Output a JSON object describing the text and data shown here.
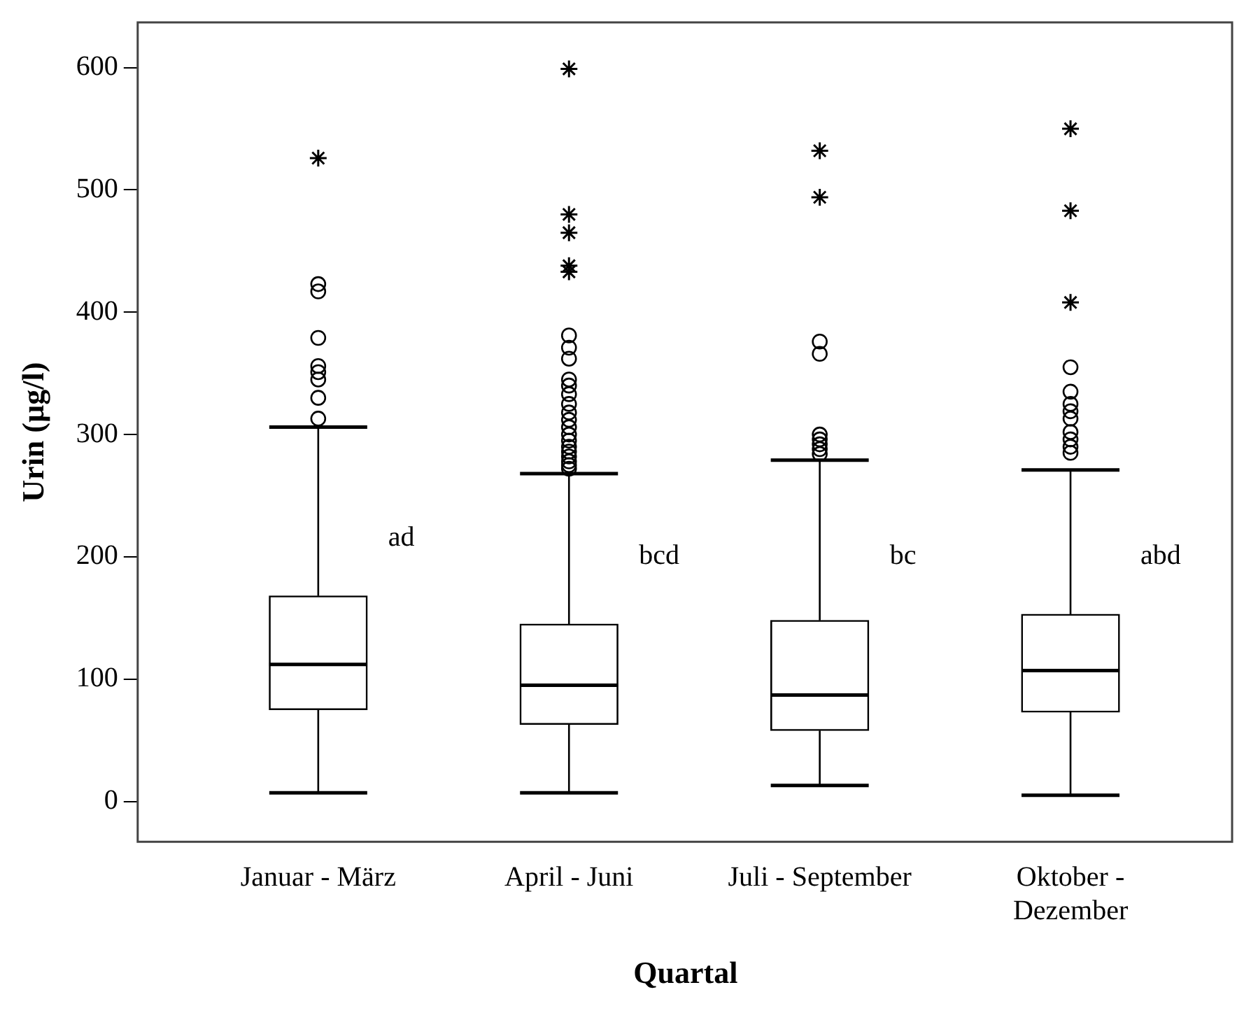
{
  "chart_data": {
    "type": "box",
    "xlabel": "Quartal",
    "ylabel": "Urin (µg/l)",
    "categories": [
      "Januar - März",
      "April - Juni",
      "Juli - September",
      "Oktober - Dezember"
    ],
    "ylim": [
      -33,
      637
    ],
    "yticks": [
      0,
      100,
      200,
      300,
      400,
      500,
      600
    ],
    "grid": false,
    "legend": false,
    "color": "#000000",
    "boxes": [
      {
        "low": 7,
        "q1": 75,
        "median": 112,
        "q3": 168,
        "high": 306,
        "outliers": [
          313,
          330,
          345,
          351,
          356,
          379,
          417,
          423,
          526
        ]
      },
      {
        "low": 7,
        "q1": 63,
        "median": 95,
        "q3": 145,
        "high": 268,
        "outliers": [
          272,
          275,
          278,
          282,
          286,
          290,
          295,
          300,
          306,
          312,
          318,
          325,
          333,
          340,
          345,
          362,
          371,
          381,
          433,
          438,
          465,
          480,
          599
        ]
      },
      {
        "low": 13,
        "q1": 58,
        "median": 87,
        "q3": 148,
        "high": 279,
        "outliers": [
          284,
          288,
          292,
          296,
          300,
          366,
          376,
          494,
          532
        ]
      },
      {
        "low": 5,
        "q1": 73,
        "median": 107,
        "q3": 153,
        "high": 271,
        "outliers": [
          285,
          290,
          296,
          302,
          313,
          319,
          325,
          335,
          355,
          408,
          483,
          550
        ]
      }
    ],
    "annotations": [
      {
        "text": "ad",
        "x": "Januar - März",
        "y": 215
      },
      {
        "text": "bcd",
        "x": "April - Juni",
        "y": 200
      },
      {
        "text": "bc",
        "x": "Juli - September",
        "y": 200
      },
      {
        "text": "abd",
        "x": "Oktober - Dezember",
        "y": 200
      }
    ]
  }
}
